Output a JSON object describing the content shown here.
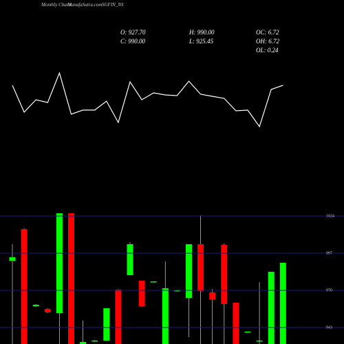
{
  "header": {
    "title": "Monthly Charts",
    "site": "MunafaSutra.com",
    "symbol": "SGFIN_NS",
    "stats": [
      "O: 927.70",
      "H: 990.00",
      "OC: 6.72",
      "C: 990.00",
      "L: 925.45",
      "OH: 6.72",
      "OL: 0.24"
    ]
  },
  "chart_data": [
    {
      "type": "line",
      "color": "#ffffff",
      "ylim": [
        0,
        200
      ],
      "values": [
        76,
        37,
        55,
        51,
        94,
        34,
        40,
        40,
        53,
        22,
        81,
        55,
        65,
        62,
        61,
        82,
        63,
        60,
        57,
        39,
        40,
        16,
        70,
        76
      ]
    },
    {
      "type": "candlestick",
      "up_color": "#00ff00",
      "down_color": "#ff0000",
      "grid": true,
      "ylim": [
        931,
        1031
      ],
      "yticks": [
        943,
        970,
        997,
        1024
      ],
      "open": [
        991.5,
        1014.5,
        958.5,
        956.5,
        953.5,
        1026,
        930,
        933,
        933.5,
        970.5,
        981,
        977,
        976,
        925,
        969.5,
        964.5,
        1003.5,
        968.5,
        1003,
        961,
        939.5,
        933,
        925,
        927.7
      ],
      "high": [
        1003.5,
        1015,
        960,
        957,
        1026,
        1026,
        948,
        934,
        957,
        971,
        1005,
        977,
        976.5,
        991,
        970.5,
        1003.5,
        1024.5,
        971,
        1004,
        961,
        940,
        976,
        983.5,
        990
      ],
      "low": [
        925,
        920,
        958,
        953.5,
        920,
        920,
        925,
        933,
        933,
        920,
        981,
        958,
        976,
        920,
        969,
        936,
        920,
        925,
        925,
        920,
        939.5,
        920,
        920,
        925.45
      ],
      "close": [
        994,
        925,
        959.5,
        954,
        1026,
        925,
        932.5,
        933.5,
        957,
        925,
        1003.5,
        958.5,
        976.5,
        971.5,
        970,
        1003.5,
        969.5,
        963.5,
        960,
        925,
        940,
        933.5,
        983.5,
        990
      ]
    }
  ]
}
